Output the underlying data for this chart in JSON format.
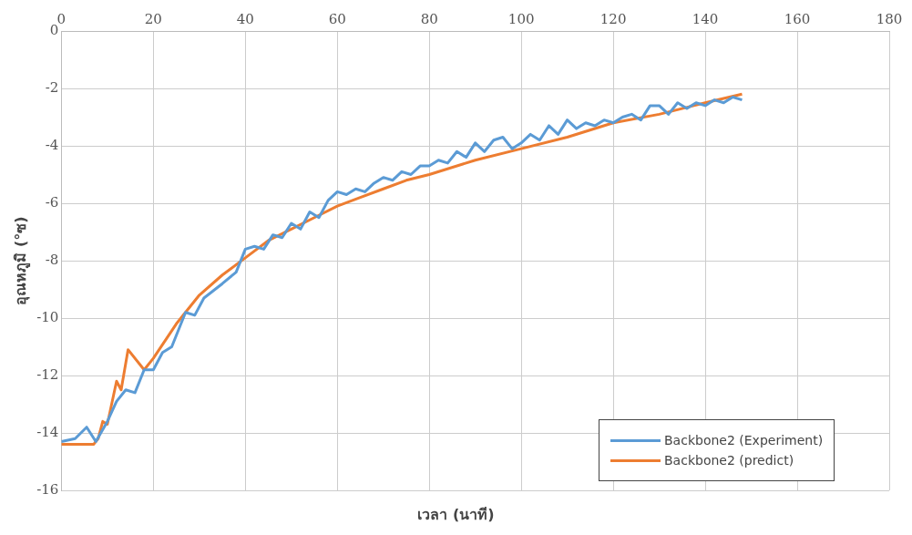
{
  "chart_data": {
    "type": "line",
    "xlabel": "เวลา (นาที)",
    "ylabel": "อุณหภูมิ (°ซ)",
    "xlim": [
      0,
      180
    ],
    "xticks": [
      0,
      20,
      40,
      60,
      80,
      100,
      120,
      140,
      160,
      180
    ],
    "ylim": [
      -16,
      0
    ],
    "yticks": [
      -16,
      -14,
      -12,
      -10,
      -8,
      -6,
      -4,
      -2,
      0
    ],
    "grid": true,
    "legend": "bottom right",
    "marker": "none",
    "line_style": "solid",
    "series": [
      {
        "name": "Backbone2 (Experiment)",
        "color": "#5b9bd5",
        "x": [
          0,
          3,
          5.5,
          7.5,
          10,
          12,
          14,
          16,
          18,
          20,
          22,
          24,
          27,
          29,
          31,
          35,
          38,
          40,
          42,
          44,
          46,
          48,
          50,
          52,
          54,
          56,
          58,
          60,
          62,
          64,
          66,
          68,
          70,
          72,
          74,
          76,
          78,
          80,
          82,
          84,
          86,
          88,
          90,
          92,
          94,
          96,
          98,
          100,
          102,
          104,
          106,
          108,
          110,
          112,
          114,
          116,
          118,
          120,
          122,
          124,
          126,
          128,
          130,
          132,
          134,
          136,
          138,
          140,
          142,
          144,
          146,
          148
        ],
        "values": [
          -14.3,
          -14.2,
          -13.8,
          -14.3,
          -13.6,
          -12.9,
          -12.5,
          -12.6,
          -11.8,
          -11.8,
          -11.2,
          -11.0,
          -9.8,
          -9.9,
          -9.3,
          -8.8,
          -8.4,
          -7.6,
          -7.5,
          -7.6,
          -7.1,
          -7.2,
          -6.7,
          -6.9,
          -6.3,
          -6.5,
          -5.9,
          -5.6,
          -5.7,
          -5.5,
          -5.6,
          -5.3,
          -5.1,
          -5.2,
          -4.9,
          -5.0,
          -4.7,
          -4.7,
          -4.5,
          -4.6,
          -4.2,
          -4.4,
          -3.9,
          -4.2,
          -3.8,
          -3.7,
          -4.1,
          -3.9,
          -3.6,
          -3.8,
          -3.3,
          -3.6,
          -3.1,
          -3.4,
          -3.2,
          -3.3,
          -3.1,
          -3.2,
          -3.0,
          -2.9,
          -3.1,
          -2.6,
          -2.6,
          -2.9,
          -2.5,
          -2.7,
          -2.5,
          -2.6,
          -2.4,
          -2.5,
          -2.3,
          -2.4
        ]
      },
      {
        "name": "Backbone2 (predict)",
        "color": "#ed7d31",
        "x": [
          0,
          4,
          7,
          8,
          9,
          10,
          12,
          13,
          14.5,
          18,
          20,
          25,
          30,
          35,
          40,
          45,
          50,
          55,
          60,
          65,
          70,
          75,
          80,
          90,
          100,
          110,
          120,
          130,
          140,
          148
        ],
        "values": [
          -14.4,
          -14.4,
          -14.4,
          -14.2,
          -13.6,
          -13.7,
          -12.2,
          -12.5,
          -11.1,
          -11.8,
          -11.4,
          -10.2,
          -9.2,
          -8.5,
          -7.9,
          -7.3,
          -6.9,
          -6.5,
          -6.1,
          -5.8,
          -5.5,
          -5.2,
          -5.0,
          -4.5,
          -4.1,
          -3.7,
          -3.2,
          -2.9,
          -2.5,
          -2.2
        ]
      }
    ]
  }
}
